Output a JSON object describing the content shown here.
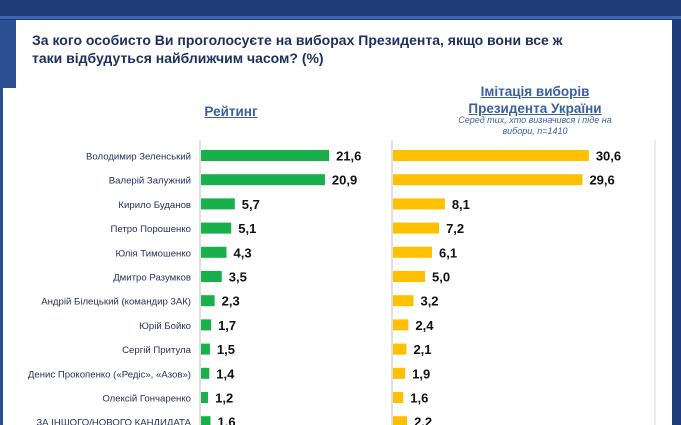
{
  "title": "За кого особисто Ви проголосуєте на виборах Президента, якщо вони все ж таки відбудуться найближчим часом? (%)",
  "colors": {
    "rating": "#17b04a",
    "imitation": "#ffc000",
    "header": "#1f3c78",
    "text": "#1c2f5e"
  },
  "chart_data": {
    "type": "bar",
    "orientation": "horizontal",
    "title": "За кого особисто Ви проголосуєте на виборах Президента, якщо вони все ж таки відбудуться найближчим часом? (%)",
    "categories": [
      "Володимир Зеленський",
      "Валерій Залужний",
      "Кирило Буданов",
      "Петро Порошенко",
      "Юлія Тимошенко",
      "Дмитро Разумков",
      "Андрій Білецький (командир 3АК)",
      "Юрій Бойко",
      "Сергій Притула",
      "Денис Прокопенко («Редіс», «Азов»)",
      "Олексій Гончаренко",
      "ЗА ІНШОГО/НОВОГО КАНДИДАТА"
    ],
    "series": [
      {
        "name": "Рейтинг",
        "display_values": [
          "21,6",
          "20,9",
          "5,7",
          "5,1",
          "4,3",
          "3,5",
          "2,3",
          "1,7",
          "1,5",
          "1,4",
          "1,2",
          "1,6"
        ],
        "values": [
          21.6,
          20.9,
          5.7,
          5.1,
          4.3,
          3.5,
          2.3,
          1.7,
          1.5,
          1.4,
          1.2,
          1.6
        ]
      },
      {
        "name": "Імітація виборів Президента України",
        "subtitle": "Серед тих, хто визначився і піде на вибори, n=1410",
        "display_values": [
          "30,6",
          "29,6",
          "8,1",
          "7,2",
          "6,1",
          "5,0",
          "3,2",
          "2,4",
          "2,1",
          "1,9",
          "1,6",
          "2,2"
        ],
        "values": [
          30.6,
          29.6,
          8.1,
          7.2,
          6.1,
          5.0,
          3.2,
          2.4,
          2.1,
          1.9,
          1.6,
          2.2
        ]
      }
    ]
  },
  "headers": {
    "left": "Рейтинг",
    "right": "Імітація виборів Президента України",
    "right_sub": "Серед тих, хто визначився і піде на вибори, n=1410"
  }
}
